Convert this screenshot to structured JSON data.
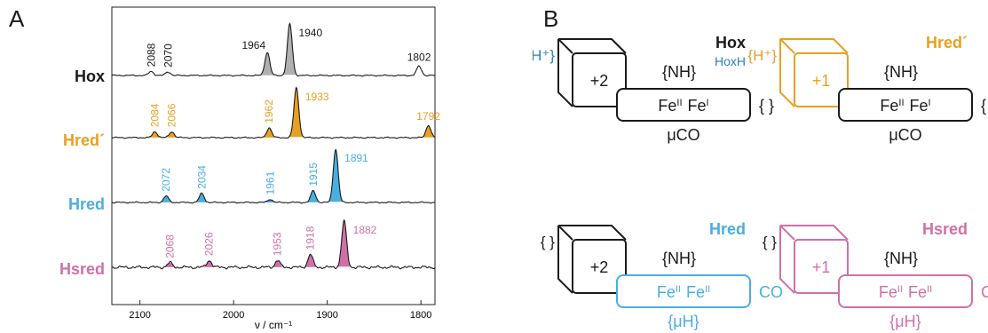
{
  "panels": {
    "a": "A",
    "b": "B"
  },
  "colors": {
    "hox": "#1a1a1a",
    "hox_fill": "#b0b0b0",
    "hred_prime": "#e8a020",
    "hred": "#4aaee0",
    "hsred": "#d070a8",
    "hoxh": "#2a7fc1"
  },
  "chart_data": {
    "type": "line",
    "title": "",
    "xlabel": "ν / cm⁻¹",
    "ylabel": "",
    "xlim": [
      2130,
      1785
    ],
    "x_ticks": [
      "2100",
      "2000",
      "1900",
      "1800"
    ],
    "x_tick_values": [
      2100,
      2000,
      1900,
      1800
    ],
    "grid": false,
    "series": [
      {
        "name": "Hox",
        "color_key": "hox",
        "peaks": [
          {
            "x": 2088,
            "label": "2088",
            "h": 0.08,
            "fill": false
          },
          {
            "x": 2070,
            "label": "2070",
            "h": 0.07,
            "fill": false
          },
          {
            "x": 1964,
            "label": "1964",
            "h": 0.45,
            "fill": true
          },
          {
            "x": 1940,
            "label": "1940",
            "h": 1.0,
            "fill": true
          },
          {
            "x": 1802,
            "label": "1802",
            "h": 0.18,
            "fill": false
          }
        ]
      },
      {
        "name": "Hred´",
        "color_key": "hred_prime",
        "peaks": [
          {
            "x": 2084,
            "label": "2084",
            "h": 0.12,
            "fill": true
          },
          {
            "x": 2066,
            "label": "2066",
            "h": 0.12,
            "fill": true
          },
          {
            "x": 1962,
            "label": "1962",
            "h": 0.2,
            "fill": true
          },
          {
            "x": 1933,
            "label": "1933",
            "h": 1.0,
            "fill": true
          },
          {
            "x": 1792,
            "label": "1792",
            "h": 0.25,
            "fill": true
          }
        ]
      },
      {
        "name": "Hred",
        "color_key": "hred",
        "peaks": [
          {
            "x": 2072,
            "label": "2072",
            "h": 0.12,
            "fill": true
          },
          {
            "x": 2034,
            "label": "2034",
            "h": 0.17,
            "fill": true
          },
          {
            "x": 1961,
            "label": "1961",
            "h": 0.06,
            "fill": true
          },
          {
            "x": 1915,
            "label": "1915",
            "h": 0.22,
            "fill": true
          },
          {
            "x": 1891,
            "label": "1891",
            "h": 1.0,
            "fill": true
          }
        ]
      },
      {
        "name": "Hsred",
        "color_key": "hsred",
        "peaks": [
          {
            "x": 2068,
            "label": "2068",
            "h": 0.1,
            "fill": true
          },
          {
            "x": 2026,
            "label": "2026",
            "h": 0.15,
            "fill": true
          },
          {
            "x": 1953,
            "label": "1953",
            "h": 0.15,
            "fill": true
          },
          {
            "x": 1918,
            "label": "1918",
            "h": 0.28,
            "fill": true
          },
          {
            "x": 1882,
            "label": "1882",
            "h": 1.0,
            "fill": true
          }
        ]
      }
    ]
  },
  "diagram": {
    "top_left": {
      "state": "Hox",
      "sub": "HoxH",
      "proton": "{H⁺}",
      "charge": "+2",
      "nh": "{NH}",
      "fe1": "Fe",
      "fe1_ox": "II",
      "fe2": "Fe",
      "fe2_ox": "I",
      "right": "{  }",
      "bridge": "μCO"
    },
    "top_right": {
      "state": "Hred´",
      "proton": "{H⁺}",
      "charge": "+1",
      "nh": "{NH}",
      "fe1": "Fe",
      "fe1_ox": "II",
      "fe2": "Fe",
      "fe2_ox": "I",
      "right": "{  }",
      "bridge": "μCO"
    },
    "bottom_left": {
      "state": "Hred",
      "proton": "{  }",
      "charge": "+2",
      "nh": "{NH}",
      "fe1": "Fe",
      "fe1_ox": "II",
      "fe2": "Fe",
      "fe2_ox": "II",
      "right": "CO",
      "bridge": "{μH}"
    },
    "bottom_right": {
      "state": "Hsred",
      "proton": "{  }",
      "charge": "+1",
      "nh": "{NH}",
      "fe1": "Fe",
      "fe1_ox": "II",
      "fe2": "Fe",
      "fe2_ox": "II",
      "right": "CO",
      "bridge": "{μH}"
    }
  }
}
